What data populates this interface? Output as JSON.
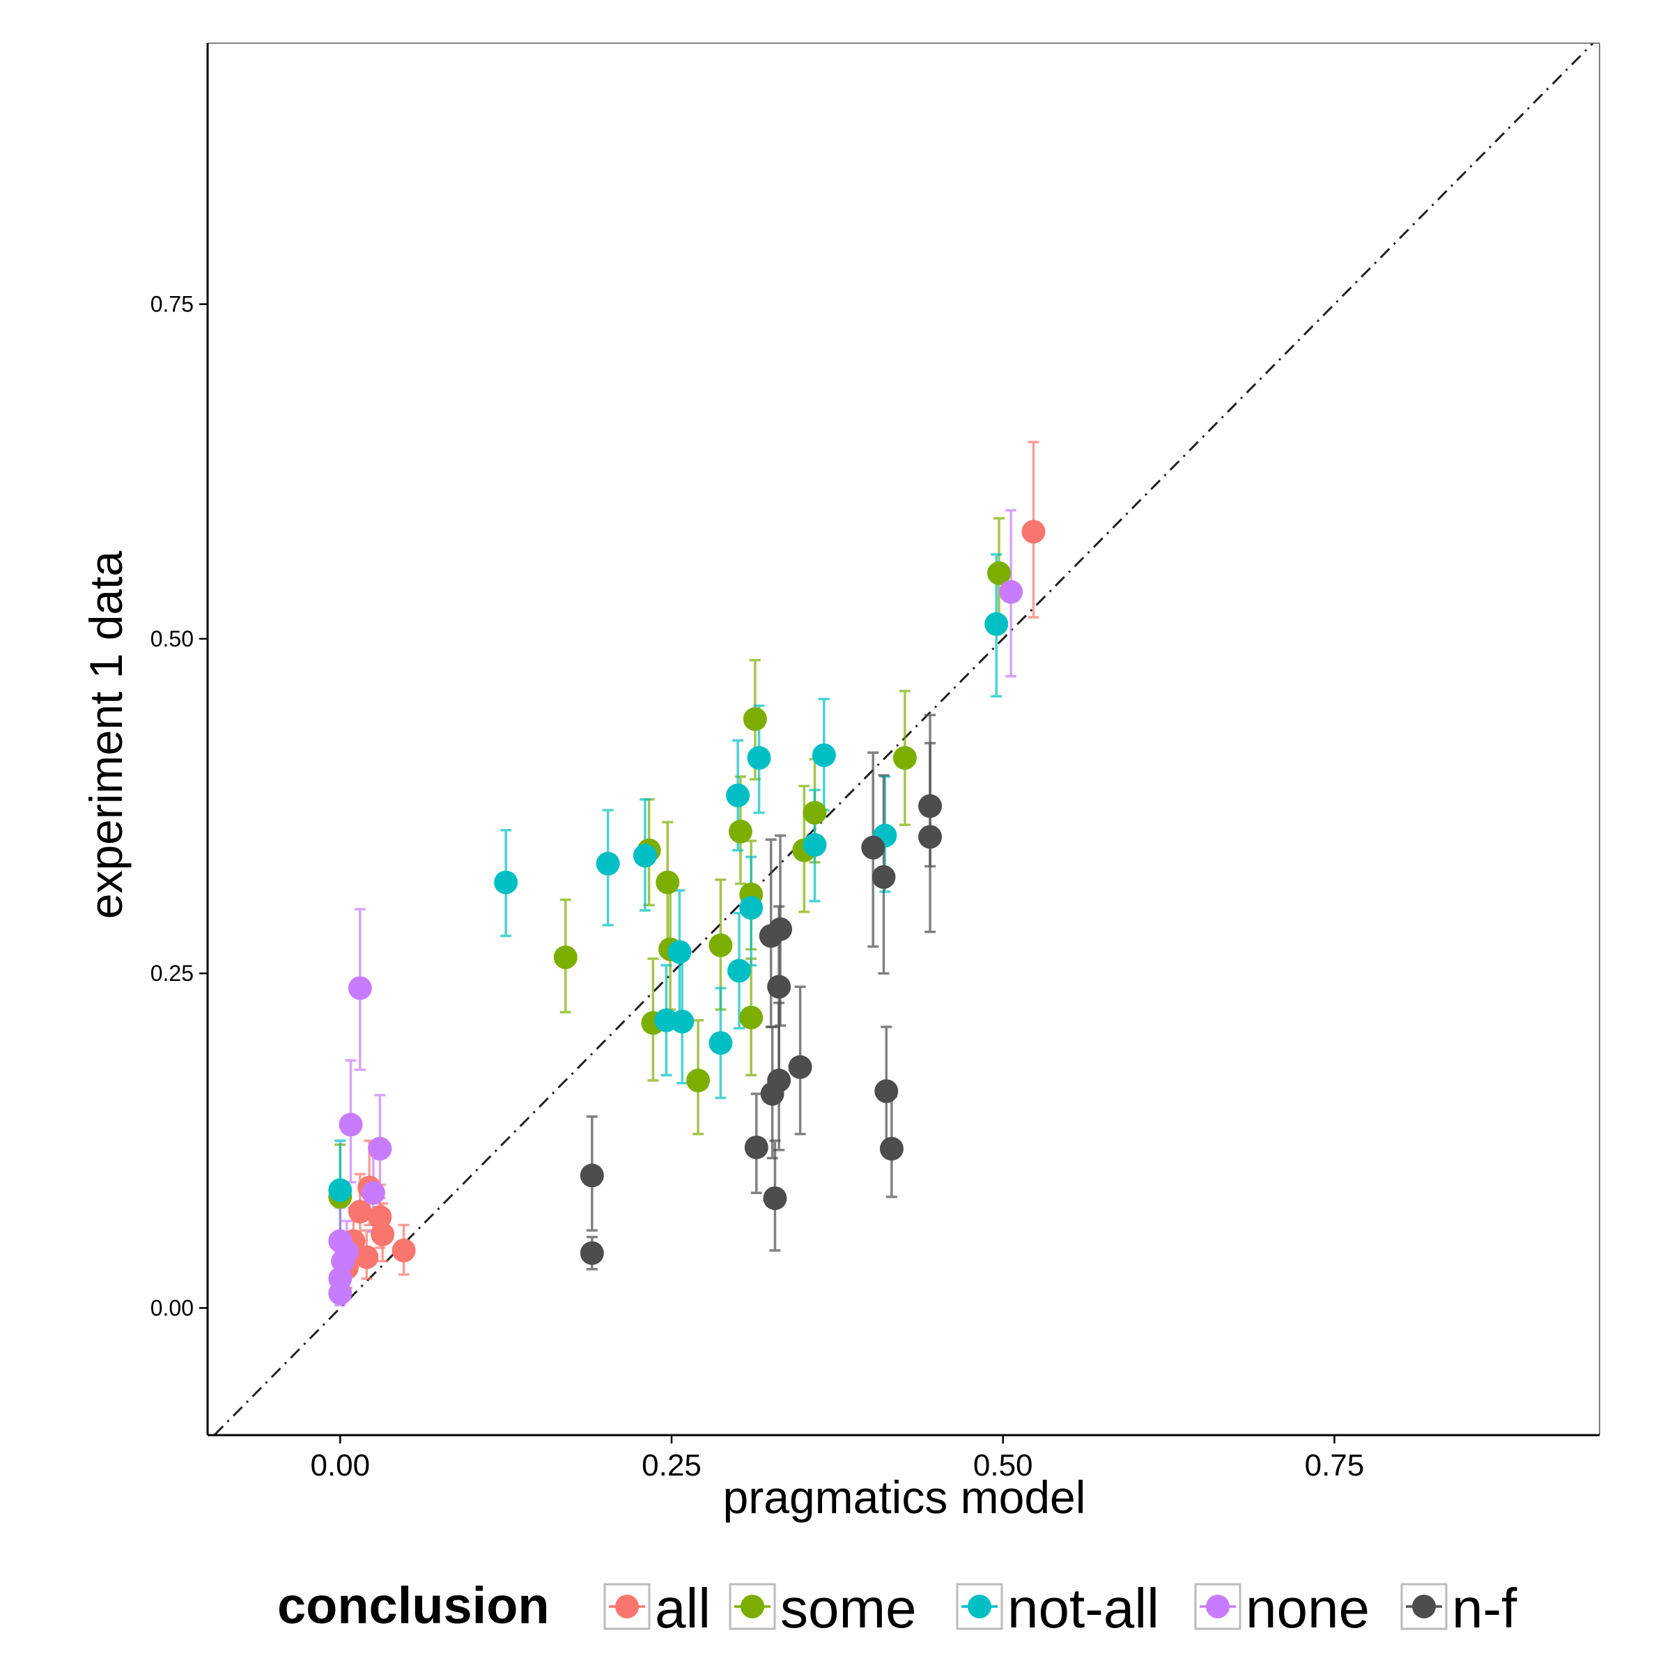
{
  "chart_data": {
    "type": "scatter",
    "xlabel": "pragmatics model",
    "ylabel": "experiment 1 data",
    "xlim": [
      -0.1,
      0.95
    ],
    "ylim": [
      -0.095,
      0.945
    ],
    "xticks": [
      0.0,
      0.25,
      0.5,
      0.75
    ],
    "xtick_labels": [
      "0.00",
      "0.25",
      "0.50",
      "0.75"
    ],
    "yticks": [
      0.0,
      0.25,
      0.5,
      0.75
    ],
    "ytick_labels": [
      "0.00",
      "0.25",
      "0.50",
      "0.75"
    ],
    "reference_line": "y = x (dash-dot)",
    "grid": false,
    "legend": {
      "title": "conclusion",
      "position": "bottom",
      "entries": [
        "all",
        "some",
        "not-all",
        "none",
        "n-f"
      ]
    },
    "colors": {
      "all": "#F8766D",
      "some": "#7CAE00",
      "not-all": "#00BFC4",
      "none": "#C77CFF",
      "n-f": "#4D4D4D"
    },
    "series": [
      {
        "name": "all",
        "points": [
          {
            "x": 0.523,
            "y": 0.58,
            "lo": 0.516,
            "hi": 0.647
          },
          {
            "x": 0.048,
            "y": 0.043,
            "lo": 0.025,
            "hi": 0.062
          },
          {
            "x": 0.032,
            "y": 0.055,
            "lo": 0.035,
            "hi": 0.078
          },
          {
            "x": 0.03,
            "y": 0.068,
            "lo": 0.045,
            "hi": 0.092
          },
          {
            "x": 0.022,
            "y": 0.09,
            "lo": 0.062,
            "hi": 0.125
          },
          {
            "x": 0.015,
            "y": 0.072,
            "lo": 0.05,
            "hi": 0.1
          },
          {
            "x": 0.02,
            "y": 0.038,
            "lo": 0.022,
            "hi": 0.058
          },
          {
            "x": 0.005,
            "y": 0.03,
            "lo": 0.015,
            "hi": 0.048
          },
          {
            "x": 0.01,
            "y": 0.05,
            "lo": 0.03,
            "hi": 0.075
          }
        ]
      },
      {
        "name": "some",
        "points": [
          {
            "x": 0.497,
            "y": 0.549,
            "lo": 0.508,
            "hi": 0.59
          },
          {
            "x": 0.313,
            "y": 0.44,
            "lo": 0.395,
            "hi": 0.484
          },
          {
            "x": 0.426,
            "y": 0.411,
            "lo": 0.361,
            "hi": 0.461
          },
          {
            "x": 0.358,
            "y": 0.37,
            "lo": 0.333,
            "hi": 0.41
          },
          {
            "x": 0.35,
            "y": 0.342,
            "lo": 0.296,
            "hi": 0.39
          },
          {
            "x": 0.302,
            "y": 0.356,
            "lo": 0.317,
            "hi": 0.397
          },
          {
            "x": 0.233,
            "y": 0.342,
            "lo": 0.301,
            "hi": 0.38
          },
          {
            "x": 0.247,
            "y": 0.318,
            "lo": 0.272,
            "hi": 0.363
          },
          {
            "x": 0.31,
            "y": 0.309,
            "lo": 0.268,
            "hi": 0.349
          },
          {
            "x": 0.17,
            "y": 0.262,
            "lo": 0.221,
            "hi": 0.305
          },
          {
            "x": 0.287,
            "y": 0.271,
            "lo": 0.223,
            "hi": 0.32
          },
          {
            "x": 0.249,
            "y": 0.268,
            "lo": 0.223,
            "hi": 0.314
          },
          {
            "x": 0.236,
            "y": 0.213,
            "lo": 0.17,
            "hi": 0.261
          },
          {
            "x": 0.31,
            "y": 0.217,
            "lo": 0.174,
            "hi": 0.261
          },
          {
            "x": 0.27,
            "y": 0.17,
            "lo": 0.13,
            "hi": 0.215
          },
          {
            "x": 0.0,
            "y": 0.083,
            "lo": 0.05,
            "hi": 0.122
          }
        ]
      },
      {
        "name": "not-all",
        "points": [
          {
            "x": 0.495,
            "y": 0.511,
            "lo": 0.457,
            "hi": 0.563
          },
          {
            "x": 0.365,
            "y": 0.413,
            "lo": 0.372,
            "hi": 0.455
          },
          {
            "x": 0.316,
            "y": 0.411,
            "lo": 0.37,
            "hi": 0.45
          },
          {
            "x": 0.3,
            "y": 0.383,
            "lo": 0.342,
            "hi": 0.424
          },
          {
            "x": 0.411,
            "y": 0.353,
            "lo": 0.311,
            "hi": 0.397
          },
          {
            "x": 0.358,
            "y": 0.346,
            "lo": 0.304,
            "hi": 0.387
          },
          {
            "x": 0.23,
            "y": 0.338,
            "lo": 0.297,
            "hi": 0.38
          },
          {
            "x": 0.202,
            "y": 0.332,
            "lo": 0.286,
            "hi": 0.372
          },
          {
            "x": 0.125,
            "y": 0.318,
            "lo": 0.278,
            "hi": 0.357
          },
          {
            "x": 0.31,
            "y": 0.299,
            "lo": 0.256,
            "hi": 0.337
          },
          {
            "x": 0.256,
            "y": 0.266,
            "lo": 0.215,
            "hi": 0.312
          },
          {
            "x": 0.301,
            "y": 0.252,
            "lo": 0.209,
            "hi": 0.295
          },
          {
            "x": 0.246,
            "y": 0.215,
            "lo": 0.174,
            "hi": 0.256
          },
          {
            "x": 0.258,
            "y": 0.214,
            "lo": 0.168,
            "hi": 0.261
          },
          {
            "x": 0.287,
            "y": 0.198,
            "lo": 0.157,
            "hi": 0.239
          },
          {
            "x": 0.0,
            "y": 0.088,
            "lo": 0.055,
            "hi": 0.125
          }
        ]
      },
      {
        "name": "none",
        "points": [
          {
            "x": 0.506,
            "y": 0.535,
            "lo": 0.472,
            "hi": 0.596
          },
          {
            "x": 0.015,
            "y": 0.239,
            "lo": 0.178,
            "hi": 0.298
          },
          {
            "x": 0.008,
            "y": 0.137,
            "lo": 0.094,
            "hi": 0.185
          },
          {
            "x": 0.03,
            "y": 0.119,
            "lo": 0.082,
            "hi": 0.159
          },
          {
            "x": 0.025,
            "y": 0.086,
            "lo": 0.057,
            "hi": 0.12
          },
          {
            "x": 0.0,
            "y": 0.05,
            "lo": 0.03,
            "hi": 0.075
          },
          {
            "x": 0.005,
            "y": 0.042,
            "lo": 0.025,
            "hi": 0.065
          },
          {
            "x": 0.002,
            "y": 0.035,
            "lo": 0.018,
            "hi": 0.055
          },
          {
            "x": 0.0,
            "y": 0.022,
            "lo": 0.008,
            "hi": 0.04
          },
          {
            "x": 0.0,
            "y": 0.011,
            "lo": 0.002,
            "hi": 0.025
          }
        ]
      },
      {
        "name": "n-f",
        "points": [
          {
            "x": 0.445,
            "y": 0.375,
            "lo": 0.33,
            "hi": 0.422
          },
          {
            "x": 0.445,
            "y": 0.352,
            "lo": 0.281,
            "hi": 0.443
          },
          {
            "x": 0.402,
            "y": 0.344,
            "lo": 0.27,
            "hi": 0.415
          },
          {
            "x": 0.41,
            "y": 0.322,
            "lo": 0.25,
            "hi": 0.398
          },
          {
            "x": 0.332,
            "y": 0.283,
            "lo": 0.211,
            "hi": 0.353
          },
          {
            "x": 0.325,
            "y": 0.278,
            "lo": 0.21,
            "hi": 0.35
          },
          {
            "x": 0.331,
            "y": 0.24,
            "lo": 0.172,
            "hi": 0.3
          },
          {
            "x": 0.347,
            "y": 0.18,
            "lo": 0.13,
            "hi": 0.24
          },
          {
            "x": 0.331,
            "y": 0.17,
            "lo": 0.118,
            "hi": 0.228
          },
          {
            "x": 0.326,
            "y": 0.16,
            "lo": 0.112,
            "hi": 0.21
          },
          {
            "x": 0.412,
            "y": 0.162,
            "lo": 0.117,
            "hi": 0.21
          },
          {
            "x": 0.314,
            "y": 0.12,
            "lo": 0.086,
            "hi": 0.16
          },
          {
            "x": 0.416,
            "y": 0.119,
            "lo": 0.083,
            "hi": 0.158
          },
          {
            "x": 0.328,
            "y": 0.082,
            "lo": 0.043,
            "hi": 0.125
          },
          {
            "x": 0.19,
            "y": 0.099,
            "lo": 0.058,
            "hi": 0.143
          },
          {
            "x": 0.19,
            "y": 0.041,
            "lo": 0.029,
            "hi": 0.053
          }
        ]
      }
    ]
  }
}
